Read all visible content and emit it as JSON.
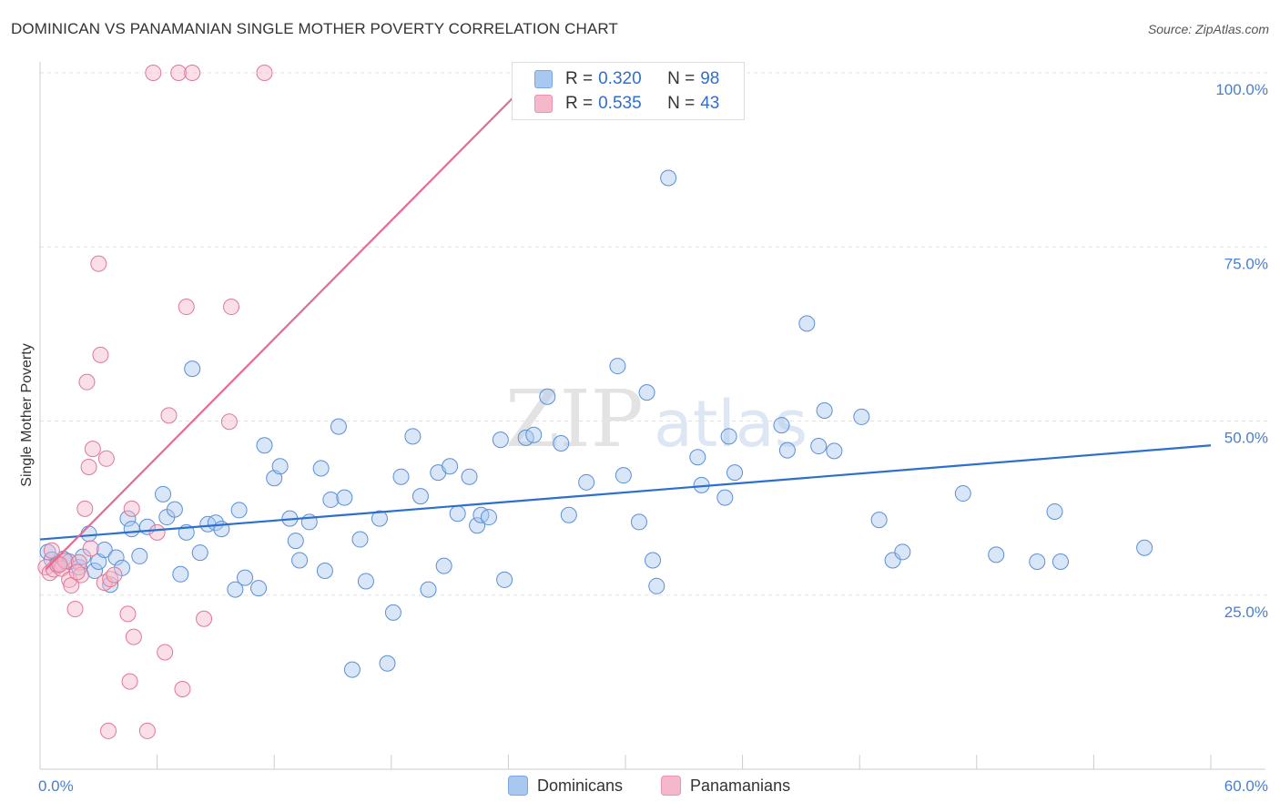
{
  "header": {
    "title": "DOMINICAN VS PANAMANIAN SINGLE MOTHER POVERTY CORRELATION CHART",
    "source": "Source: ZipAtlas.com"
  },
  "legend": {
    "rows": [
      {
        "r_label": "R =",
        "r_value": "0.320",
        "n_label": "N =",
        "n_value": "98",
        "color": "#a9c8f0"
      },
      {
        "r_label": "R =",
        "r_value": "0.535",
        "n_label": "N =",
        "n_value": "43",
        "color": "#f5b8cb"
      }
    ],
    "bottom": [
      {
        "label": "Dominicans",
        "color": "#a9c8f0"
      },
      {
        "label": "Panamanians",
        "color": "#f5b8cb"
      }
    ]
  },
  "watermark": {
    "part1": "ZIP",
    "part2": "atlas"
  },
  "chart_data": {
    "type": "scatter",
    "title": "DOMINICAN VS PANAMANIAN SINGLE MOTHER POVERTY CORRELATION CHART",
    "xlabel": "",
    "ylabel": "Single Mother Poverty",
    "xlim": [
      0,
      60
    ],
    "ylim": [
      0,
      100
    ],
    "x_tick_labels": [
      "0.0%",
      "60.0%"
    ],
    "y_ticks": [
      25,
      50,
      75,
      100
    ],
    "y_tick_labels": [
      "25.0%",
      "50.0%",
      "75.0%",
      "100.0%"
    ],
    "grid": true,
    "colors": {
      "blue_fill": "#a9c8f0",
      "blue_stroke": "#5b8fd6",
      "blue_line": "#2c6fcf",
      "pink_fill": "#f5b8cb",
      "pink_stroke": "#e07896",
      "pink_line": "#e56b93",
      "tick_text": "#4a7fcc"
    },
    "series": [
      {
        "name": "Dominicans",
        "r": 0.32,
        "n": 98,
        "trend": {
          "x": [
            0,
            60
          ],
          "y": [
            33.0,
            46.5
          ]
        },
        "points": [
          [
            0.4,
            31.2
          ],
          [
            0.6,
            30.1
          ],
          [
            0.9,
            29.5
          ],
          [
            1.2,
            30.2
          ],
          [
            1.5,
            29.8
          ],
          [
            2.0,
            29.0
          ],
          [
            2.2,
            30.5
          ],
          [
            2.5,
            33.8
          ],
          [
            2.8,
            28.5
          ],
          [
            3.0,
            29.8
          ],
          [
            3.3,
            31.5
          ],
          [
            3.6,
            26.5
          ],
          [
            3.9,
            30.4
          ],
          [
            4.2,
            28.9
          ],
          [
            4.5,
            36.0
          ],
          [
            4.7,
            34.5
          ],
          [
            5.1,
            30.6
          ],
          [
            5.5,
            34.8
          ],
          [
            6.3,
            39.5
          ],
          [
            6.5,
            36.2
          ],
          [
            6.9,
            37.3
          ],
          [
            7.2,
            28.0
          ],
          [
            7.5,
            34.0
          ],
          [
            7.8,
            57.5
          ],
          [
            8.2,
            31.1
          ],
          [
            8.6,
            35.2
          ],
          [
            9.0,
            35.4
          ],
          [
            9.3,
            34.5
          ],
          [
            10.0,
            25.8
          ],
          [
            10.2,
            37.2
          ],
          [
            10.5,
            27.5
          ],
          [
            11.2,
            26.0
          ],
          [
            11.5,
            46.5
          ],
          [
            12.0,
            41.8
          ],
          [
            12.3,
            43.5
          ],
          [
            12.8,
            36.0
          ],
          [
            13.1,
            32.8
          ],
          [
            13.3,
            30.0
          ],
          [
            13.8,
            35.5
          ],
          [
            14.4,
            43.2
          ],
          [
            14.6,
            28.5
          ],
          [
            14.9,
            38.7
          ],
          [
            15.3,
            49.2
          ],
          [
            15.6,
            39.0
          ],
          [
            16.4,
            33.0
          ],
          [
            16.7,
            27.0
          ],
          [
            17.4,
            36.0
          ],
          [
            18.1,
            22.5
          ],
          [
            18.5,
            42.0
          ],
          [
            19.1,
            47.8
          ],
          [
            19.5,
            39.2
          ],
          [
            19.9,
            25.8
          ],
          [
            20.4,
            42.6
          ],
          [
            20.7,
            29.2
          ],
          [
            21.0,
            43.5
          ],
          [
            21.4,
            36.7
          ],
          [
            22.0,
            42.0
          ],
          [
            22.4,
            35.0
          ],
          [
            22.6,
            36.5
          ],
          [
            23.0,
            36.2
          ],
          [
            23.6,
            47.3
          ],
          [
            23.8,
            27.2
          ],
          [
            24.9,
            47.6
          ],
          [
            25.3,
            48.0
          ],
          [
            26.0,
            53.5
          ],
          [
            26.7,
            46.8
          ],
          [
            27.1,
            36.5
          ],
          [
            28.0,
            41.2
          ],
          [
            29.6,
            57.9
          ],
          [
            29.9,
            42.2
          ],
          [
            30.7,
            35.5
          ],
          [
            31.1,
            54.1
          ],
          [
            31.4,
            30.0
          ],
          [
            31.6,
            26.3
          ],
          [
            32.2,
            84.9
          ],
          [
            33.7,
            44.8
          ],
          [
            33.9,
            40.8
          ],
          [
            35.1,
            39.0
          ],
          [
            35.3,
            47.8
          ],
          [
            35.6,
            42.6
          ],
          [
            38.0,
            49.4
          ],
          [
            38.3,
            45.8
          ],
          [
            39.3,
            64.0
          ],
          [
            39.9,
            46.4
          ],
          [
            40.2,
            51.5
          ],
          [
            40.7,
            45.7
          ],
          [
            42.1,
            50.6
          ],
          [
            43.0,
            35.8
          ],
          [
            43.7,
            30.0
          ],
          [
            44.2,
            31.2
          ],
          [
            47.3,
            39.6
          ],
          [
            49.0,
            30.8
          ],
          [
            51.1,
            29.8
          ],
          [
            52.0,
            37.0
          ],
          [
            52.3,
            29.8
          ],
          [
            56.6,
            31.8
          ],
          [
            16.0,
            14.3
          ],
          [
            17.8,
            15.2
          ]
        ]
      },
      {
        "name": "Panamanians",
        "r": 0.535,
        "n": 43,
        "trend": {
          "x": [
            0.3,
            25.5
          ],
          "y": [
            28.7,
            100
          ]
        },
        "points": [
          [
            0.3,
            29.0
          ],
          [
            0.5,
            28.2
          ],
          [
            0.7,
            28.7
          ],
          [
            0.9,
            29.3
          ],
          [
            1.1,
            28.8
          ],
          [
            1.3,
            29.9
          ],
          [
            1.5,
            27.2
          ],
          [
            1.6,
            26.4
          ],
          [
            1.8,
            23.0
          ],
          [
            2.0,
            29.7
          ],
          [
            2.1,
            27.9
          ],
          [
            2.3,
            37.4
          ],
          [
            2.4,
            55.6
          ],
          [
            2.5,
            43.4
          ],
          [
            2.6,
            31.7
          ],
          [
            2.7,
            46.0
          ],
          [
            3.0,
            72.6
          ],
          [
            3.1,
            59.5
          ],
          [
            3.3,
            26.8
          ],
          [
            3.4,
            44.6
          ],
          [
            3.5,
            5.5
          ],
          [
            3.6,
            27.3
          ],
          [
            4.5,
            22.3
          ],
          [
            4.6,
            12.6
          ],
          [
            4.7,
            37.4
          ],
          [
            4.8,
            19.0
          ],
          [
            5.8,
            100
          ],
          [
            6.0,
            34.0
          ],
          [
            6.4,
            16.8
          ],
          [
            6.6,
            50.8
          ],
          [
            7.1,
            100
          ],
          [
            7.3,
            11.5
          ],
          [
            7.5,
            66.4
          ],
          [
            7.8,
            100
          ],
          [
            8.4,
            21.6
          ],
          [
            9.7,
            49.9
          ],
          [
            9.8,
            66.4
          ],
          [
            11.5,
            100
          ],
          [
            5.5,
            5.5
          ],
          [
            0.6,
            31.4
          ],
          [
            1.0,
            29.4
          ],
          [
            1.9,
            28.3
          ],
          [
            3.8,
            27.9
          ]
        ]
      }
    ]
  }
}
